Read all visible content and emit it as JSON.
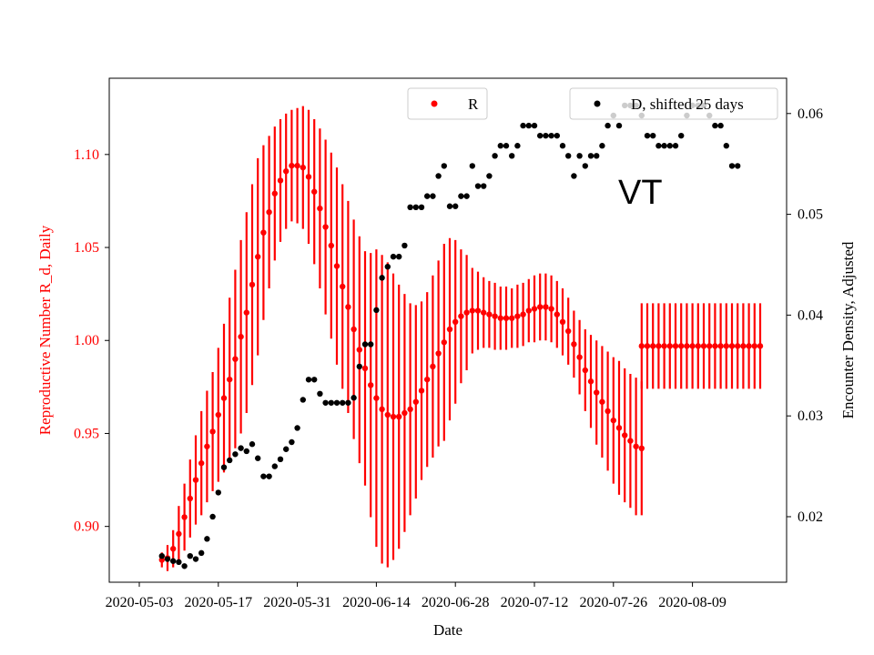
{
  "chart_data": {
    "type": "scatter",
    "xlabel": "Date",
    "ylabel_left": "Reproductive Number R_d, Daily",
    "ylabel_right": "Encounter Density, Adjusted",
    "annotation": "VT",
    "x_ticks": [
      "2020-05-03",
      "2020-05-17",
      "2020-05-31",
      "2020-06-14",
      "2020-06-28",
      "2020-07-12",
      "2020-07-26",
      "2020-08-09"
    ],
    "y_left_ticks": [
      "0.90",
      "0.95",
      "1.00",
      "1.05",
      "1.10"
    ],
    "y_right_ticks": [
      "0.02",
      "0.03",
      "0.04",
      "0.05",
      "0.06"
    ],
    "x_range": [
      "2020-05-03",
      "2020-08-21"
    ],
    "y_left_range": [
      0.87,
      1.141
    ],
    "y_right_range": [
      0.0135,
      0.0635
    ],
    "colors": {
      "R": "#ff0000",
      "D": "#000000"
    },
    "legend": [
      {
        "label": "R",
        "color": "#ff0000",
        "position": "top-center"
      },
      {
        "label": "D, shifted 25 days",
        "color": "#000000",
        "position": "top-right"
      }
    ],
    "series": [
      {
        "name": "R",
        "axis": "left",
        "x_start": "2020-05-07",
        "y": [
          0.882,
          0.883,
          0.888,
          0.896,
          0.905,
          0.915,
          0.925,
          0.934,
          0.943,
          0.951,
          0.96,
          0.969,
          0.979,
          0.99,
          1.002,
          1.015,
          1.03,
          1.045,
          1.058,
          1.069,
          1.079,
          1.086,
          1.091,
          1.094,
          1.094,
          1.093,
          1.088,
          1.08,
          1.071,
          1.061,
          1.051,
          1.04,
          1.029,
          1.018,
          1.006,
          0.995,
          0.985,
          0.976,
          0.969,
          0.963,
          0.96,
          0.959,
          0.959,
          0.961,
          0.963,
          0.967,
          0.973,
          0.979,
          0.986,
          0.993,
          0.999,
          1.006,
          1.01,
          1.013,
          1.015,
          1.016,
          1.016,
          1.015,
          1.014,
          1.013,
          1.012,
          1.012,
          1.012,
          1.013,
          1.014,
          1.016,
          1.017,
          1.018,
          1.018,
          1.017,
          1.014,
          1.01,
          1.005,
          0.998,
          0.991,
          0.984,
          0.978,
          0.972,
          0.967,
          0.962,
          0.957,
          0.953,
          0.949,
          0.946,
          0.943,
          0.942
        ],
        "err": [
          0.004,
          0.007,
          0.01,
          0.015,
          0.018,
          0.021,
          0.024,
          0.028,
          0.03,
          0.032,
          0.036,
          0.04,
          0.044,
          0.048,
          0.052,
          0.054,
          0.054,
          0.053,
          0.047,
          0.041,
          0.036,
          0.033,
          0.031,
          0.03,
          0.031,
          0.033,
          0.036,
          0.039,
          0.043,
          0.047,
          0.05,
          0.053,
          0.055,
          0.057,
          0.059,
          0.061,
          0.063,
          0.071,
          0.08,
          0.083,
          0.082,
          0.077,
          0.071,
          0.064,
          0.057,
          0.052,
          0.048,
          0.047,
          0.049,
          0.05,
          0.053,
          0.049,
          0.044,
          0.036,
          0.031,
          0.023,
          0.021,
          0.019,
          0.018,
          0.018,
          0.017,
          0.017,
          0.016,
          0.017,
          0.017,
          0.017,
          0.018,
          0.018,
          0.018,
          0.018,
          0.018,
          0.018,
          0.018,
          0.018,
          0.02,
          0.022,
          0.025,
          0.028,
          0.03,
          0.032,
          0.034,
          0.036,
          0.036,
          0.036,
          0.037,
          0.036
        ]
      },
      {
        "name": "R",
        "axis": "left",
        "x_start": "2020-07-31",
        "y": [
          0.997,
          0.997,
          0.997,
          0.997,
          0.997,
          0.997,
          0.997,
          0.997,
          0.997,
          0.997,
          0.997,
          0.997,
          0.997,
          0.997,
          0.997,
          0.997,
          0.997,
          0.997,
          0.997,
          0.997,
          0.997,
          0.997
        ],
        "err": [
          0.023,
          0.023,
          0.023,
          0.023,
          0.023,
          0.023,
          0.023,
          0.023,
          0.023,
          0.023,
          0.023,
          0.023,
          0.023,
          0.023,
          0.023,
          0.023,
          0.023,
          0.023,
          0.023,
          0.023,
          0.023,
          0.023
        ]
      },
      {
        "name": "D, shifted 25 days",
        "axis": "right",
        "x_start": "2020-05-07",
        "y": [
          0.0161,
          0.0158,
          0.0156,
          0.0155,
          0.0151,
          0.0161,
          0.0158,
          0.0164,
          0.0178,
          0.02,
          0.0224,
          0.0249,
          0.0256,
          0.0262,
          0.0268,
          0.0265,
          0.0272,
          0.0258,
          0.024,
          0.024,
          0.025,
          0.0257,
          0.0267,
          0.0274,
          0.0288,
          0.0316,
          0.0336,
          0.0336,
          0.0322,
          0.0313,
          0.0313,
          0.0313,
          0.0313,
          0.0313,
          0.0318,
          0.0349,
          0.0371,
          0.0371,
          0.0405,
          0.0437,
          0.0448,
          0.0458,
          0.0458,
          0.0469,
          0.0507,
          0.0507,
          0.0507,
          0.0518,
          0.0518,
          0.0538,
          0.0548,
          0.0508,
          0.0508,
          0.0518,
          0.0518,
          0.0548,
          0.0528,
          0.0528,
          0.0538,
          0.0558,
          0.0568,
          0.0568,
          0.0558,
          0.0568,
          0.0588,
          0.0588,
          0.0588,
          0.0578,
          0.0578,
          0.0578,
          0.0578,
          0.0568,
          0.0558,
          0.0538,
          0.0558,
          0.0548,
          0.0558,
          0.0558,
          0.0568,
          0.0588,
          0.0598,
          0.0588,
          0.0608,
          0.0608,
          0.0608,
          0.0598,
          0.0578,
          0.0578,
          0.0568,
          0.0568,
          0.0568,
          0.0568,
          0.0578,
          0.0598,
          0.0608,
          0.0608,
          0.0608,
          0.0598,
          0.0588,
          0.0588,
          0.0568,
          0.0548,
          0.0548
        ]
      }
    ]
  }
}
